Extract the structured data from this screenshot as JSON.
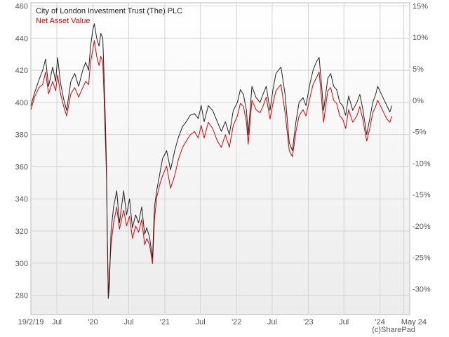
{
  "chart_data": {
    "type": "line",
    "grid": true,
    "legend_position": "top-left",
    "credit": "(c)SharePad",
    "x_start": "2019-02-19",
    "x_end": "2024-05-31",
    "x_ticks": [
      {
        "date": "2019-02-19",
        "label": "19/2/19"
      },
      {
        "date": "2019-07-01",
        "label": "Jul"
      },
      {
        "date": "2020-01-01",
        "label": "'20"
      },
      {
        "date": "2020-07-01",
        "label": "Jul"
      },
      {
        "date": "2021-01-01",
        "label": "'21"
      },
      {
        "date": "2021-07-01",
        "label": "Jul"
      },
      {
        "date": "2022-01-01",
        "label": "'22"
      },
      {
        "date": "2022-07-01",
        "label": "Jul"
      },
      {
        "date": "2023-01-01",
        "label": "'23"
      },
      {
        "date": "2023-07-01",
        "label": "Jul"
      },
      {
        "date": "2024-01-01",
        "label": "'24"
      },
      {
        "date": "2024-05-01",
        "label": "May 24"
      }
    ],
    "y_left": {
      "min": 268,
      "max": 462,
      "ticks": [
        "280",
        "300",
        "320",
        "340",
        "360",
        "380",
        "400",
        "420",
        "440",
        "460"
      ]
    },
    "y_right": {
      "min": -34.1,
      "max": 15.5,
      "ticks": [
        "-30%",
        "-25%",
        "-20%",
        "-15%",
        "-10%",
        "-5%",
        "0%",
        "5%",
        "10%",
        "15%"
      ]
    },
    "series": [
      {
        "name": "City of London Investment Trust (The) PLC",
        "color": "#222222",
        "axis": "left",
        "points": [
          [
            "2019-02-19",
            398
          ],
          [
            "2019-03-10",
            406
          ],
          [
            "2019-04-01",
            414
          ],
          [
            "2019-04-20",
            420
          ],
          [
            "2019-05-05",
            427
          ],
          [
            "2019-05-20",
            410
          ],
          [
            "2019-06-10",
            422
          ],
          [
            "2019-06-25",
            413
          ],
          [
            "2019-07-05",
            428
          ],
          [
            "2019-07-20",
            412
          ],
          [
            "2019-08-05",
            402
          ],
          [
            "2019-08-20",
            395
          ],
          [
            "2019-09-10",
            413
          ],
          [
            "2019-09-30",
            418
          ],
          [
            "2019-10-20",
            410
          ],
          [
            "2019-11-10",
            420
          ],
          [
            "2019-11-25",
            425
          ],
          [
            "2019-12-10",
            420
          ],
          [
            "2019-12-20",
            435
          ],
          [
            "2019-12-31",
            445
          ],
          [
            "2020-01-08",
            449
          ],
          [
            "2020-01-20",
            440
          ],
          [
            "2020-02-01",
            435
          ],
          [
            "2020-02-10",
            443
          ],
          [
            "2020-02-20",
            440
          ],
          [
            "2020-02-26",
            418
          ],
          [
            "2020-03-05",
            385
          ],
          [
            "2020-03-10",
            360
          ],
          [
            "2020-03-14",
            315
          ],
          [
            "2020-03-19",
            278
          ],
          [
            "2020-03-24",
            285
          ],
          [
            "2020-04-02",
            320
          ],
          [
            "2020-04-15",
            335
          ],
          [
            "2020-05-01",
            345
          ],
          [
            "2020-05-15",
            325
          ],
          [
            "2020-06-05",
            345
          ],
          [
            "2020-06-20",
            330
          ],
          [
            "2020-07-05",
            340
          ],
          [
            "2020-07-20",
            322
          ],
          [
            "2020-08-05",
            330
          ],
          [
            "2020-08-20",
            325
          ],
          [
            "2020-09-05",
            335
          ],
          [
            "2020-09-20",
            318
          ],
          [
            "2020-10-01",
            322
          ],
          [
            "2020-10-15",
            316
          ],
          [
            "2020-10-30",
            303
          ],
          [
            "2020-11-09",
            335
          ],
          [
            "2020-11-20",
            345
          ],
          [
            "2020-12-05",
            355
          ],
          [
            "2020-12-20",
            365
          ],
          [
            "2021-01-10",
            370
          ],
          [
            "2021-01-30",
            358
          ],
          [
            "2021-02-20",
            370
          ],
          [
            "2021-03-10",
            378
          ],
          [
            "2021-04-01",
            385
          ],
          [
            "2021-04-20",
            388
          ],
          [
            "2021-05-10",
            392
          ],
          [
            "2021-06-01",
            393
          ],
          [
            "2021-06-20",
            390
          ],
          [
            "2021-07-05",
            398
          ],
          [
            "2021-07-20",
            388
          ],
          [
            "2021-08-10",
            398
          ],
          [
            "2021-09-01",
            395
          ],
          [
            "2021-09-25",
            388
          ],
          [
            "2021-10-15",
            382
          ],
          [
            "2021-11-05",
            388
          ],
          [
            "2021-11-25",
            380
          ],
          [
            "2021-12-15",
            395
          ],
          [
            "2022-01-05",
            400
          ],
          [
            "2022-01-20",
            408
          ],
          [
            "2022-02-05",
            405
          ],
          [
            "2022-02-20",
            395
          ],
          [
            "2022-03-01",
            380
          ],
          [
            "2022-03-20",
            410
          ],
          [
            "2022-04-10",
            403
          ],
          [
            "2022-04-30",
            400
          ],
          [
            "2022-05-15",
            405
          ],
          [
            "2022-06-01",
            410
          ],
          [
            "2022-06-20",
            395
          ],
          [
            "2022-07-05",
            408
          ],
          [
            "2022-07-20",
            418
          ],
          [
            "2022-08-15",
            422
          ],
          [
            "2022-09-05",
            405
          ],
          [
            "2022-09-26",
            375
          ],
          [
            "2022-10-12",
            370
          ],
          [
            "2022-10-30",
            388
          ],
          [
            "2022-11-15",
            400
          ],
          [
            "2022-12-05",
            403
          ],
          [
            "2022-12-20",
            398
          ],
          [
            "2023-01-10",
            412
          ],
          [
            "2023-01-25",
            420
          ],
          [
            "2023-02-10",
            425
          ],
          [
            "2023-02-25",
            428
          ],
          [
            "2023-03-10",
            410
          ],
          [
            "2023-03-20",
            395
          ],
          [
            "2023-04-10",
            415
          ],
          [
            "2023-04-25",
            418
          ],
          [
            "2023-05-10",
            410
          ],
          [
            "2023-05-25",
            408
          ],
          [
            "2023-06-10",
            400
          ],
          [
            "2023-06-25",
            398
          ],
          [
            "2023-07-10",
            392
          ],
          [
            "2023-07-25",
            404
          ],
          [
            "2023-08-15",
            395
          ],
          [
            "2023-09-05",
            400
          ],
          [
            "2023-09-20",
            405
          ],
          [
            "2023-10-05",
            396
          ],
          [
            "2023-10-25",
            380
          ],
          [
            "2023-11-10",
            390
          ],
          [
            "2023-11-25",
            400
          ],
          [
            "2023-12-10",
            405
          ],
          [
            "2023-12-20",
            410
          ],
          [
            "2024-01-05",
            406
          ],
          [
            "2024-01-20",
            402
          ],
          [
            "2024-02-05",
            398
          ],
          [
            "2024-02-20",
            394
          ],
          [
            "2024-03-01",
            398
          ]
        ]
      },
      {
        "name": "Net Asset Value",
        "color": "#dd0000",
        "axis": "right",
        "points": [
          [
            "2019-02-19",
            -1.5
          ],
          [
            "2019-03-10",
            0.5
          ],
          [
            "2019-04-01",
            2.0
          ],
          [
            "2019-04-20",
            2.5
          ],
          [
            "2019-05-05",
            4.5
          ],
          [
            "2019-05-20",
            1.0
          ],
          [
            "2019-06-10",
            3.0
          ],
          [
            "2019-06-25",
            1.5
          ],
          [
            "2019-07-05",
            4.0
          ],
          [
            "2019-07-20",
            1.0
          ],
          [
            "2019-08-05",
            -1.0
          ],
          [
            "2019-08-20",
            -2.5
          ],
          [
            "2019-09-10",
            1.0
          ],
          [
            "2019-09-30",
            2.0
          ],
          [
            "2019-10-20",
            0.5
          ],
          [
            "2019-11-10",
            2.0
          ],
          [
            "2019-11-25",
            3.0
          ],
          [
            "2019-12-10",
            2.5
          ],
          [
            "2019-12-20",
            6.0
          ],
          [
            "2019-12-31",
            8.0
          ],
          [
            "2020-01-08",
            9.5
          ],
          [
            "2020-01-20",
            7.0
          ],
          [
            "2020-02-01",
            5.5
          ],
          [
            "2020-02-10",
            7.0
          ],
          [
            "2020-02-20",
            6.0
          ],
          [
            "2020-02-26",
            1.0
          ],
          [
            "2020-03-05",
            -7.0
          ],
          [
            "2020-03-10",
            -12.0
          ],
          [
            "2020-03-14",
            -22.0
          ],
          [
            "2020-03-19",
            -31.5
          ],
          [
            "2020-03-24",
            -27.5
          ],
          [
            "2020-04-02",
            -23.0
          ],
          [
            "2020-04-15",
            -19.5
          ],
          [
            "2020-05-01",
            -17.0
          ],
          [
            "2020-05-15",
            -20.5
          ],
          [
            "2020-06-05",
            -17.5
          ],
          [
            "2020-06-20",
            -20.0
          ],
          [
            "2020-07-05",
            -18.5
          ],
          [
            "2020-07-20",
            -22.0
          ],
          [
            "2020-08-05",
            -20.0
          ],
          [
            "2020-08-20",
            -21.0
          ],
          [
            "2020-09-05",
            -19.0
          ],
          [
            "2020-09-20",
            -23.0
          ],
          [
            "2020-10-01",
            -22.0
          ],
          [
            "2020-10-15",
            -23.0
          ],
          [
            "2020-10-30",
            -26.0
          ],
          [
            "2020-11-09",
            -19.0
          ],
          [
            "2020-11-20",
            -15.5
          ],
          [
            "2020-12-05",
            -13.5
          ],
          [
            "2020-12-20",
            -12.0
          ],
          [
            "2021-01-10",
            -10.5
          ],
          [
            "2021-01-30",
            -14.0
          ],
          [
            "2021-02-20",
            -12.0
          ],
          [
            "2021-03-10",
            -9.5
          ],
          [
            "2021-04-01",
            -7.5
          ],
          [
            "2021-04-20",
            -6.5
          ],
          [
            "2021-05-10",
            -5.5
          ],
          [
            "2021-06-01",
            -5.0
          ],
          [
            "2021-06-20",
            -6.0
          ],
          [
            "2021-07-05",
            -4.0
          ],
          [
            "2021-07-20",
            -6.0
          ],
          [
            "2021-08-10",
            -3.5
          ],
          [
            "2021-09-01",
            -4.5
          ],
          [
            "2021-09-25",
            -6.5
          ],
          [
            "2021-10-15",
            -7.5
          ],
          [
            "2021-11-05",
            -5.5
          ],
          [
            "2021-11-25",
            -7.5
          ],
          [
            "2021-12-15",
            -4.0
          ],
          [
            "2022-01-05",
            -2.5
          ],
          [
            "2022-01-20",
            -0.5
          ],
          [
            "2022-02-05",
            -1.0
          ],
          [
            "2022-02-20",
            -3.5
          ],
          [
            "2022-03-01",
            -7.0
          ],
          [
            "2022-03-20",
            0.0
          ],
          [
            "2022-04-10",
            -1.5
          ],
          [
            "2022-04-30",
            -2.0
          ],
          [
            "2022-05-15",
            -1.0
          ],
          [
            "2022-06-01",
            0.5
          ],
          [
            "2022-06-20",
            -3.0
          ],
          [
            "2022-07-05",
            -0.5
          ],
          [
            "2022-07-20",
            1.5
          ],
          [
            "2022-08-15",
            2.5
          ],
          [
            "2022-09-05",
            -2.0
          ],
          [
            "2022-09-26",
            -8.0
          ],
          [
            "2022-10-12",
            -9.0
          ],
          [
            "2022-10-30",
            -5.0
          ],
          [
            "2022-11-15",
            -2.5
          ],
          [
            "2022-12-05",
            -1.5
          ],
          [
            "2022-12-20",
            -2.5
          ],
          [
            "2023-01-10",
            0.5
          ],
          [
            "2023-01-25",
            2.5
          ],
          [
            "2023-02-10",
            3.5
          ],
          [
            "2023-02-25",
            4.5
          ],
          [
            "2023-03-10",
            0.0
          ],
          [
            "2023-03-20",
            -3.5
          ],
          [
            "2023-04-10",
            1.5
          ],
          [
            "2023-04-25",
            2.0
          ],
          [
            "2023-05-10",
            0.0
          ],
          [
            "2023-05-25",
            -0.5
          ],
          [
            "2023-06-10",
            -2.5
          ],
          [
            "2023-06-25",
            -3.0
          ],
          [
            "2023-07-10",
            -4.5
          ],
          [
            "2023-07-25",
            -1.5
          ],
          [
            "2023-08-15",
            -3.5
          ],
          [
            "2023-09-05",
            -2.5
          ],
          [
            "2023-09-20",
            -1.0
          ],
          [
            "2023-10-05",
            -3.0
          ],
          [
            "2023-10-25",
            -6.5
          ],
          [
            "2023-11-10",
            -4.5
          ],
          [
            "2023-11-25",
            -2.0
          ],
          [
            "2023-12-10",
            -1.0
          ],
          [
            "2023-12-20",
            0.0
          ],
          [
            "2024-01-05",
            -1.0
          ],
          [
            "2024-01-20",
            -2.0
          ],
          [
            "2024-02-05",
            -3.0
          ],
          [
            "2024-02-20",
            -3.5
          ],
          [
            "2024-03-01",
            -2.5
          ]
        ]
      }
    ]
  }
}
